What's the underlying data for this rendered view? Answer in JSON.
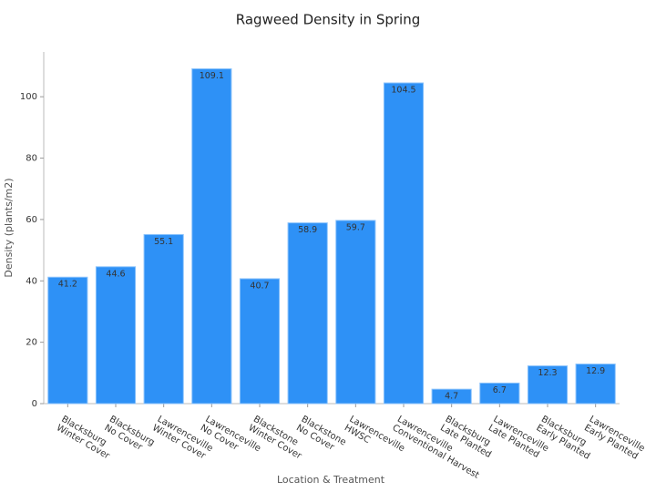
{
  "chart_data": {
    "type": "bar",
    "title": "Ragweed Density in Spring",
    "x_label": "Location & Treatment",
    "y_label": "Density (plants/m2)",
    "categories": [
      [
        "Blacksburg",
        "Winter Cover"
      ],
      [
        "Blacksburg",
        "No Cover"
      ],
      [
        "Lawrenceville",
        "Winter Cover"
      ],
      [
        "Lawrenceville",
        "No Cover"
      ],
      [
        "Blackstone",
        "Winter Cover"
      ],
      [
        "Blackstone",
        "No Cover"
      ],
      [
        "Lawrenceville",
        "HWSC"
      ],
      [
        "Lawrenceville",
        "Conventional Harvest"
      ],
      [
        "Blacksburg",
        "Late Planted"
      ],
      [
        "Lawrenceville",
        "Late Planted"
      ],
      [
        "Blacksburg",
        "Early Planted"
      ],
      [
        "Lawrenceville",
        "Early Planted"
      ]
    ],
    "values": [
      41.2,
      44.6,
      55.1,
      109.1,
      40.7,
      58.9,
      59.7,
      104.5,
      4.7,
      6.7,
      12.3,
      12.9
    ],
    "color": "#2e91f6",
    "ylim": [
      0,
      114.6
    ],
    "yticks": [
      0,
      20,
      40,
      60,
      80,
      100
    ],
    "grid": false
  }
}
